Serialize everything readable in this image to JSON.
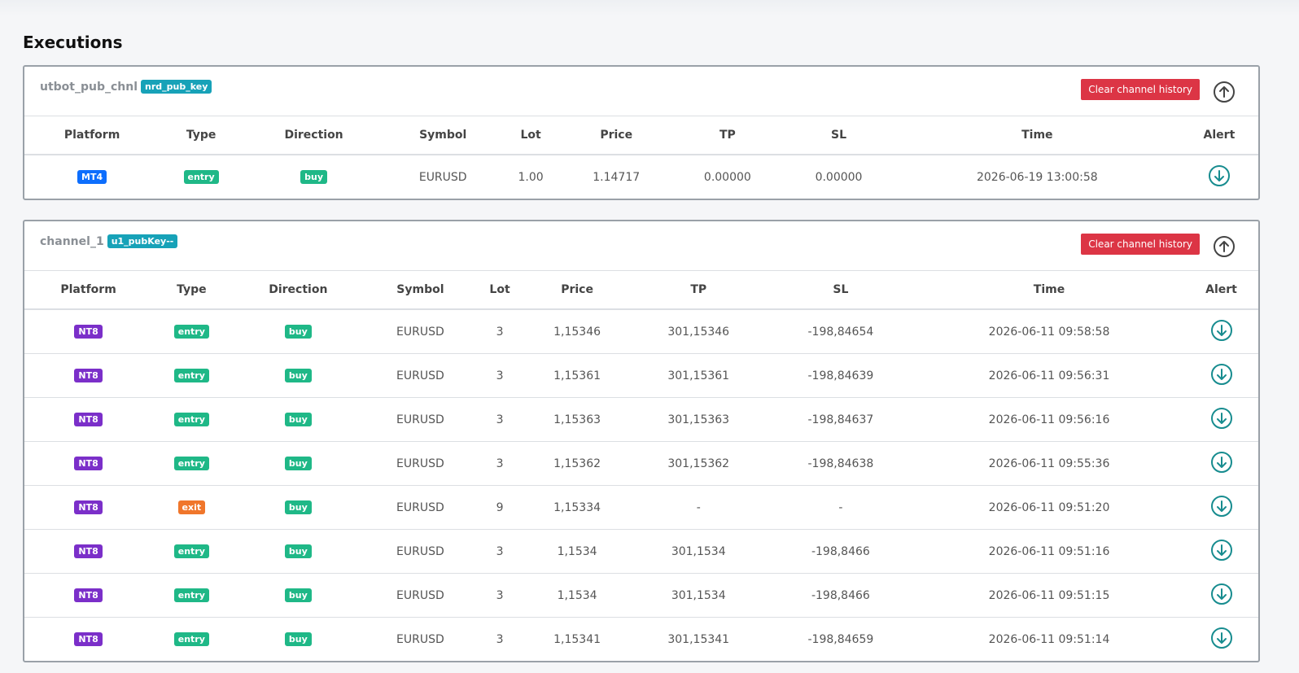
{
  "title": "Executions",
  "columns": [
    "Platform",
    "Type",
    "Direction",
    "Symbol",
    "Lot",
    "Price",
    "TP",
    "SL",
    "Time",
    "Alert"
  ],
  "channels": [
    {
      "name": "utbot_pub_chnl",
      "key": "nrd_pub_key",
      "button": "Clear channel history",
      "rows": [
        [
          {
            "text": "MT4",
            "color": "#0d6efd"
          },
          {
            "text": "entry",
            "color": "#1fb887"
          },
          {
            "text": "buy",
            "color": "#1fb887"
          },
          "EURUSD",
          "1.00",
          "1.14717",
          "0.00000",
          "0.00000",
          "2026-06-19 13:00:58"
        ]
      ]
    },
    {
      "name": "channel_1",
      "key": "u1_pubKey--",
      "button": "Clear channel history",
      "rows": [
        [
          {
            "text": "NT8",
            "color": "#7b2fc9"
          },
          {
            "text": "entry",
            "color": "#1fb887"
          },
          {
            "text": "buy",
            "color": "#1fb887"
          },
          "EURUSD",
          "3",
          "1,15346",
          "301,15346",
          "-198,84654",
          "2026-06-11 09:58:58"
        ],
        [
          {
            "text": "NT8",
            "color": "#7b2fc9"
          },
          {
            "text": "entry",
            "color": "#1fb887"
          },
          {
            "text": "buy",
            "color": "#1fb887"
          },
          "EURUSD",
          "3",
          "1,15361",
          "301,15361",
          "-198,84639",
          "2026-06-11 09:56:31"
        ],
        [
          {
            "text": "NT8",
            "color": "#7b2fc9"
          },
          {
            "text": "entry",
            "color": "#1fb887"
          },
          {
            "text": "buy",
            "color": "#1fb887"
          },
          "EURUSD",
          "3",
          "1,15363",
          "301,15363",
          "-198,84637",
          "2026-06-11 09:56:16"
        ],
        [
          {
            "text": "NT8",
            "color": "#7b2fc9"
          },
          {
            "text": "entry",
            "color": "#1fb887"
          },
          {
            "text": "buy",
            "color": "#1fb887"
          },
          "EURUSD",
          "3",
          "1,15362",
          "301,15362",
          "-198,84638",
          "2026-06-11 09:55:36"
        ],
        [
          {
            "text": "NT8",
            "color": "#7b2fc9"
          },
          {
            "text": "exit",
            "color": "#f0762b"
          },
          {
            "text": "buy",
            "color": "#1fb887"
          },
          "EURUSD",
          "9",
          "1,15334",
          "-",
          "-",
          "2026-06-11 09:51:20"
        ],
        [
          {
            "text": "NT8",
            "color": "#7b2fc9"
          },
          {
            "text": "entry",
            "color": "#1fb887"
          },
          {
            "text": "buy",
            "color": "#1fb887"
          },
          "EURUSD",
          "3",
          "1,1534",
          "301,1534",
          "-198,8466",
          "2026-06-11 09:51:16"
        ],
        [
          {
            "text": "NT8",
            "color": "#7b2fc9"
          },
          {
            "text": "entry",
            "color": "#1fb887"
          },
          {
            "text": "buy",
            "color": "#1fb887"
          },
          "EURUSD",
          "3",
          "1,1534",
          "301,1534",
          "-198,8466",
          "2026-06-11 09:51:15"
        ],
        [
          {
            "text": "NT8",
            "color": "#7b2fc9"
          },
          {
            "text": "entry",
            "color": "#1fb887"
          },
          {
            "text": "buy",
            "color": "#1fb887"
          },
          "EURUSD",
          "3",
          "1,15341",
          "301,15341",
          "-198,84659",
          "2026-06-11 09:51:14"
        ]
      ]
    }
  ]
}
